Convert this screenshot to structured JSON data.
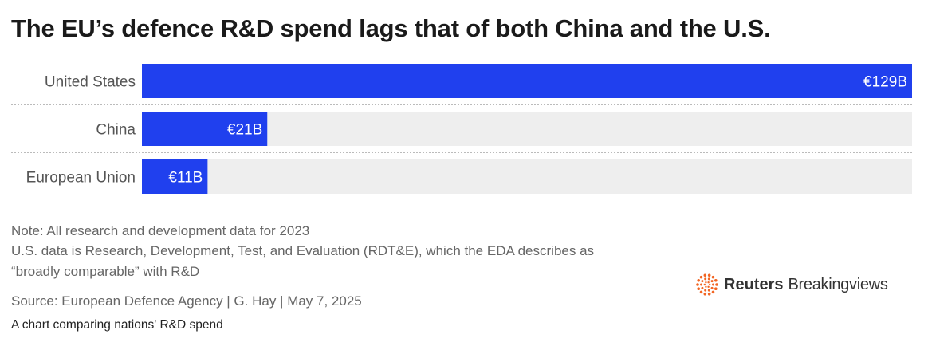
{
  "header": {
    "title": "The EU’s defence R&D spend lags that of both China and the U.S."
  },
  "chart_data": {
    "type": "bar",
    "orientation": "horizontal",
    "categories": [
      "United States",
      "China",
      "European Union"
    ],
    "values": [
      129,
      21,
      11
    ],
    "value_labels": [
      "€129B",
      "€21B",
      "€11B"
    ],
    "unit": "€ billion",
    "xlim": [
      0,
      129
    ],
    "grid": false,
    "legend": "none",
    "bar_color": "#2040ee",
    "track_color": "#eeeeee"
  },
  "notes": {
    "line1": "Note: All research and development data for 2023",
    "line2": "U.S. data is Research, Development, Test, and Evaluation (RDT&E), which the EDA describes as",
    "line3": "“broadly comparable” with R&D",
    "source": "Source: European Defence Agency | G. Hay | May 7, 2025"
  },
  "caption": "A chart comparing nations' R&D spend",
  "logo": {
    "name": "reuters-breakingviews-logo",
    "part1": "Reuters",
    "part2": "Breakingviews",
    "color": "#f26522"
  }
}
